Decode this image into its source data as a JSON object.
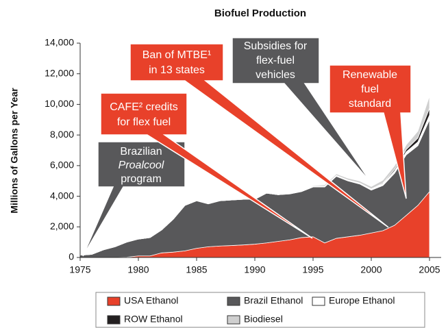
{
  "chart_data": {
    "type": "stacked-area",
    "title": "Biofuel Production",
    "ylabel": "Millions of Gallons per Year",
    "x": [
      1975,
      1976,
      1977,
      1978,
      1979,
      1980,
      1981,
      1982,
      1983,
      1984,
      1985,
      1986,
      1987,
      1988,
      1989,
      1990,
      1991,
      1992,
      1993,
      1994,
      1995,
      1996,
      1997,
      1998,
      1999,
      2000,
      2001,
      2002,
      2003,
      2004,
      2005
    ],
    "series": [
      {
        "name": "USA Ethanol",
        "color": "#e8412a",
        "values": [
          0,
          0,
          0,
          0,
          20,
          100,
          100,
          300,
          350,
          430,
          600,
          700,
          750,
          780,
          820,
          870,
          950,
          1050,
          1150,
          1300,
          1350,
          950,
          1250,
          1350,
          1450,
          1600,
          1750,
          2100,
          2750,
          3400,
          4300
        ]
      },
      {
        "name": "Brazil Ethanol",
        "color": "#58585a",
        "values": [
          150,
          200,
          500,
          700,
          980,
          1100,
          1200,
          1500,
          2150,
          2970,
          3100,
          2800,
          2950,
          2970,
          2980,
          2930,
          3250,
          3050,
          3000,
          3000,
          3250,
          3650,
          4050,
          3650,
          3350,
          2800,
          2950,
          3400,
          3950,
          3900,
          4700
        ]
      },
      {
        "name": "Europe Ethanol",
        "color": "#ffffff",
        "values": [
          0,
          0,
          0,
          0,
          0,
          0,
          0,
          0,
          0,
          0,
          0,
          0,
          0,
          0,
          0,
          0,
          0,
          0,
          20,
          30,
          50,
          50,
          60,
          60,
          70,
          80,
          100,
          150,
          200,
          250,
          300
        ]
      },
      {
        "name": "ROW Ethanol",
        "color": "#231f20",
        "values": [
          0,
          0,
          0,
          0,
          0,
          0,
          0,
          0,
          0,
          0,
          0,
          0,
          0,
          0,
          0,
          0,
          0,
          0,
          0,
          0,
          0,
          0,
          0,
          0,
          0,
          0,
          50,
          100,
          150,
          250,
          450
        ]
      },
      {
        "name": "Biodiesel",
        "color": "#cfcfcf",
        "values": [
          0,
          0,
          0,
          0,
          0,
          0,
          0,
          0,
          0,
          0,
          0,
          0,
          0,
          0,
          0,
          0,
          0,
          0,
          0,
          0,
          50,
          100,
          100,
          120,
          130,
          150,
          200,
          250,
          300,
          450,
          800
        ]
      }
    ],
    "xlim": [
      1975,
      2006
    ],
    "xticks": [
      1975,
      1980,
      1985,
      1990,
      1995,
      2000,
      2005
    ],
    "ylim": [
      0,
      14000
    ],
    "yticks": [
      0,
      {
        "value": 2000,
        "label": "2,000"
      },
      {
        "value": 4000,
        "label": "4,000"
      },
      {
        "value": 6000,
        "label": "6,000"
      },
      {
        "value": 8000,
        "label": "8,000"
      },
      {
        "value": 10000,
        "label": "10,000"
      },
      {
        "value": 12000,
        "label": "12,000"
      },
      {
        "value": 14000,
        "label": "14,000"
      }
    ],
    "annotations": [
      {
        "lines": [
          "Brazilian",
          "Proalcool",
          "program"
        ]
      },
      {
        "lines": [
          "CAFE² credits",
          "for flex fuel"
        ]
      },
      {
        "lines": [
          "Ban of MTBE¹",
          "in 13 states"
        ]
      },
      {
        "lines": [
          "Subsidies for",
          "flex-fuel",
          "vehicles"
        ]
      },
      {
        "lines": [
          "Renewable",
          "fuel",
          "standard"
        ]
      }
    ]
  }
}
